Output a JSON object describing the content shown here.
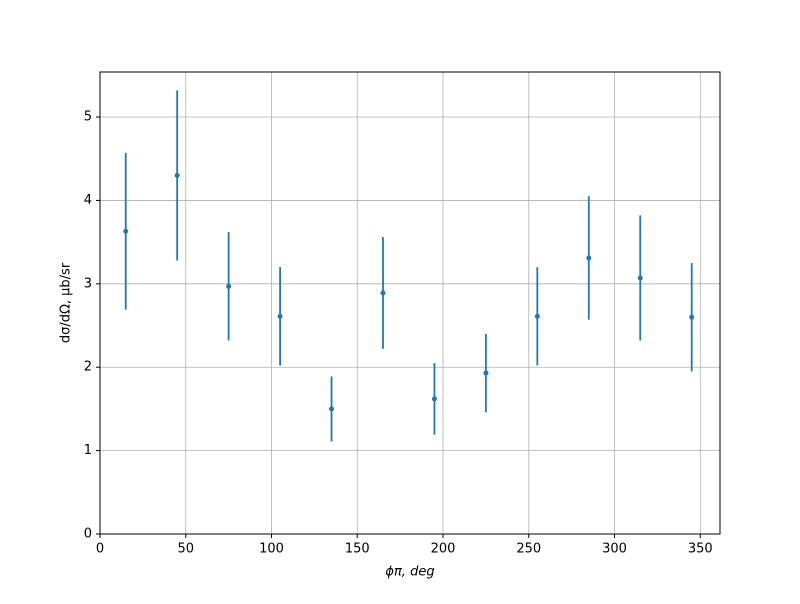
{
  "chart_data": {
    "type": "errorbar",
    "x_label": "ϕπ, deg",
    "y_label": "dσ/dΩ, μb/sr",
    "series": [
      {
        "color": "#1f77b4",
        "x": [
          15,
          45,
          75,
          105,
          135,
          165,
          195,
          225,
          255,
          285,
          315,
          345
        ],
        "values": [
          3.63,
          4.3,
          2.97,
          2.61,
          1.5,
          2.89,
          1.62,
          1.93,
          2.61,
          3.31,
          3.07,
          2.6
        ],
        "errors": [
          0.94,
          1.02,
          0.65,
          0.59,
          0.39,
          0.67,
          0.43,
          0.47,
          0.59,
          0.74,
          0.75,
          0.65
        ]
      }
    ],
    "xlim": [
      0,
      361.5
    ],
    "xticks": [
      0,
      50,
      100,
      150,
      200,
      250,
      300,
      350
    ],
    "ylim": [
      0,
      5.54
    ],
    "yticks": [
      0,
      1,
      2,
      3,
      4,
      5
    ],
    "grid": true
  }
}
